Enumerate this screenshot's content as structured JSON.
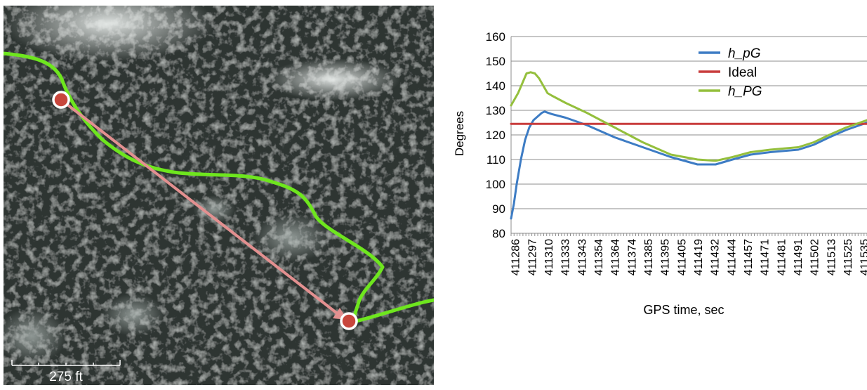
{
  "map": {
    "scale_label": "275 ft",
    "colors": {
      "track": "#6ee61e",
      "arrow": "#e39090",
      "marker_fill": "#c8463c",
      "marker_ring": "#ffffff"
    }
  },
  "chart_data": {
    "type": "line",
    "xlabel": "GPS time, sec",
    "ylabel": "Degrees",
    "ylim": [
      80,
      160
    ],
    "yticks": [
      80,
      90,
      100,
      110,
      120,
      130,
      140,
      150,
      160
    ],
    "x_tick_labels": [
      "411286",
      "411297",
      "411310",
      "411333",
      "411343",
      "411354",
      "411364",
      "411374",
      "411385",
      "411395",
      "411405",
      "411419",
      "411432",
      "411444",
      "411457",
      "411471",
      "411481",
      "411491",
      "411502",
      "411513",
      "411525",
      "411535"
    ],
    "x_range": [
      411286,
      411540
    ],
    "grid": "horizontal",
    "legend_position": "top-right",
    "series": [
      {
        "name": "h_pG",
        "color": "#3d7cc4",
        "italic": true,
        "x": [
          411286,
          411288,
          411290,
          411293,
          411296,
          411299,
          411302,
          411305,
          411308,
          411310,
          411315,
          411325,
          411340,
          411360,
          411380,
          411400,
          411419,
          411432,
          411444,
          411457,
          411471,
          411491,
          411502,
          411513,
          411525,
          411540
        ],
        "values": [
          86,
          92,
          100,
          110,
          118,
          123,
          126,
          127.5,
          129,
          129.5,
          128.5,
          127,
          124,
          119,
          115,
          111,
          108,
          108,
          110,
          112,
          113,
          114,
          116,
          119,
          122,
          125
        ]
      },
      {
        "name": "Ideal",
        "color": "#c83c3c",
        "italic": false,
        "x": [
          411286,
          411540
        ],
        "values": [
          124.5,
          124.5
        ]
      },
      {
        "name": "h_PG",
        "color": "#94bf3c",
        "italic": true,
        "x": [
          411286,
          411288,
          411291,
          411294,
          411297,
          411300,
          411303,
          411306,
          411308,
          411310,
          411312,
          411315,
          411325,
          411340,
          411360,
          411380,
          411400,
          411419,
          411432,
          411444,
          411457,
          411471,
          411491,
          411502,
          411513,
          411525,
          411540
        ],
        "values": [
          132,
          134,
          137,
          141,
          145,
          145.5,
          145,
          143,
          141,
          139,
          137,
          136,
          133,
          129,
          123,
          117,
          112,
          110,
          109.5,
          111,
          113,
          114,
          115,
          117,
          120,
          123,
          126
        ]
      }
    ]
  }
}
